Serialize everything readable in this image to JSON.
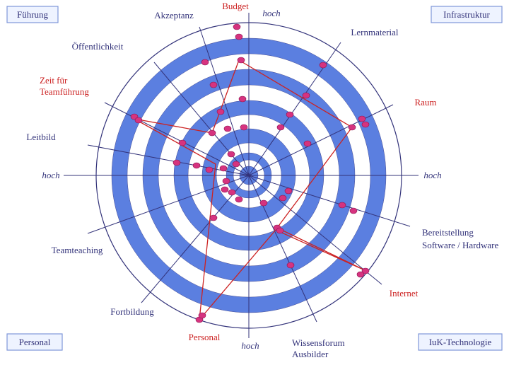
{
  "corners": {
    "top_left": "Führung",
    "top_right": "Infrastruktur",
    "bottom_left": "Personal",
    "bottom_right": "IuK-Technologie"
  },
  "spokes": {
    "budget": "Budget",
    "lernmaterial": "Lernmaterial",
    "raum": "Raum",
    "bereitstellung": [
      "Bereitstellung",
      "Software / Hardware"
    ],
    "internet": "Internet",
    "wissensforum": [
      "Wissensforum",
      "Ausbilder"
    ],
    "personal": "Personal",
    "fortbildung": "Fortbildung",
    "teamteaching": "Teamteaching",
    "leitbild": "Leitbild",
    "zeit": [
      "Zeit für",
      "Teamführung"
    ],
    "oeffentlichkeit": "Öffentlichkeit",
    "akzeptanz": "Akzeptanz"
  },
  "axis_labels": {
    "top": "hoch",
    "left": "hoch",
    "right": "hoch",
    "bottom": "hoch"
  }
}
